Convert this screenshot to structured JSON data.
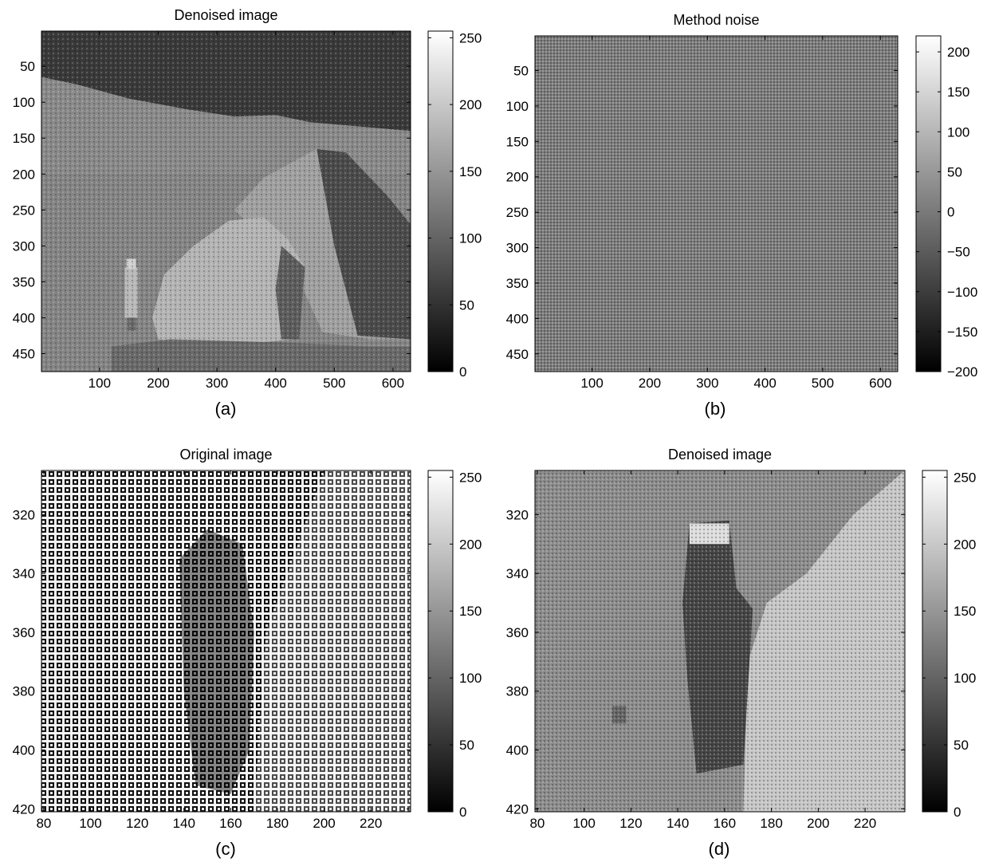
{
  "chart_data": [
    {
      "panel": "a",
      "type": "heatmap",
      "title": "Denoised image",
      "caption": "(a)",
      "content": "grayscale lunar landscape: dark sky band, gray hills, large boulder on right, astronaut figure at left",
      "xlim": [
        1,
        630
      ],
      "ylim": [
        1,
        475
      ],
      "y_reversed": true,
      "xticks": [
        100,
        200,
        300,
        400,
        500,
        600
      ],
      "yticks": [
        50,
        100,
        150,
        200,
        250,
        300,
        350,
        400,
        450
      ],
      "colorbar": {
        "colormap": "gray",
        "range": [
          0,
          255
        ],
        "ticks": [
          0,
          50,
          100,
          150,
          200,
          250
        ]
      }
    },
    {
      "panel": "b",
      "type": "heatmap",
      "title": "Method noise",
      "caption": "(b)",
      "content": "uniform mid-gray fine periodic dot pattern over the whole image",
      "xlim": [
        1,
        630
      ],
      "ylim": [
        1,
        475
      ],
      "y_reversed": true,
      "xticks": [
        100,
        200,
        300,
        400,
        500,
        600
      ],
      "yticks": [
        50,
        100,
        150,
        200,
        250,
        300,
        350,
        400,
        450
      ],
      "colorbar": {
        "colormap": "gray",
        "range": [
          -200,
          220
        ],
        "ticks": [
          -200,
          -150,
          -100,
          -50,
          0,
          50,
          100,
          150,
          200
        ]
      }
    },
    {
      "panel": "c",
      "type": "heatmap",
      "title": "Original image",
      "caption": "(c)",
      "content": "zoomed crop with strong periodic black/white block pattern; faint astronaut silhouette in center",
      "xlim": [
        79,
        237
      ],
      "ylim": [
        305,
        421
      ],
      "y_reversed": true,
      "xticks": [
        80,
        100,
        120,
        140,
        160,
        180,
        200,
        220
      ],
      "yticks": [
        320,
        340,
        360,
        380,
        400,
        420
      ],
      "colorbar": {
        "colormap": "gray",
        "range": [
          0,
          255
        ],
        "ticks": [
          0,
          50,
          100,
          150,
          200,
          250
        ]
      }
    },
    {
      "panel": "d",
      "type": "heatmap",
      "title": "Denoised image",
      "caption": "(d)",
      "content": "zoomed crop after denoising: gray background, dark astronaut figure in center, bright rock slope on right",
      "xlim": [
        79,
        237
      ],
      "ylim": [
        305,
        421
      ],
      "y_reversed": true,
      "xticks": [
        80,
        100,
        120,
        140,
        160,
        180,
        200,
        220
      ],
      "yticks": [
        320,
        340,
        360,
        380,
        400,
        420
      ],
      "colorbar": {
        "colormap": "gray",
        "range": [
          0,
          255
        ],
        "ticks": [
          0,
          50,
          100,
          150,
          200,
          250
        ]
      }
    }
  ]
}
